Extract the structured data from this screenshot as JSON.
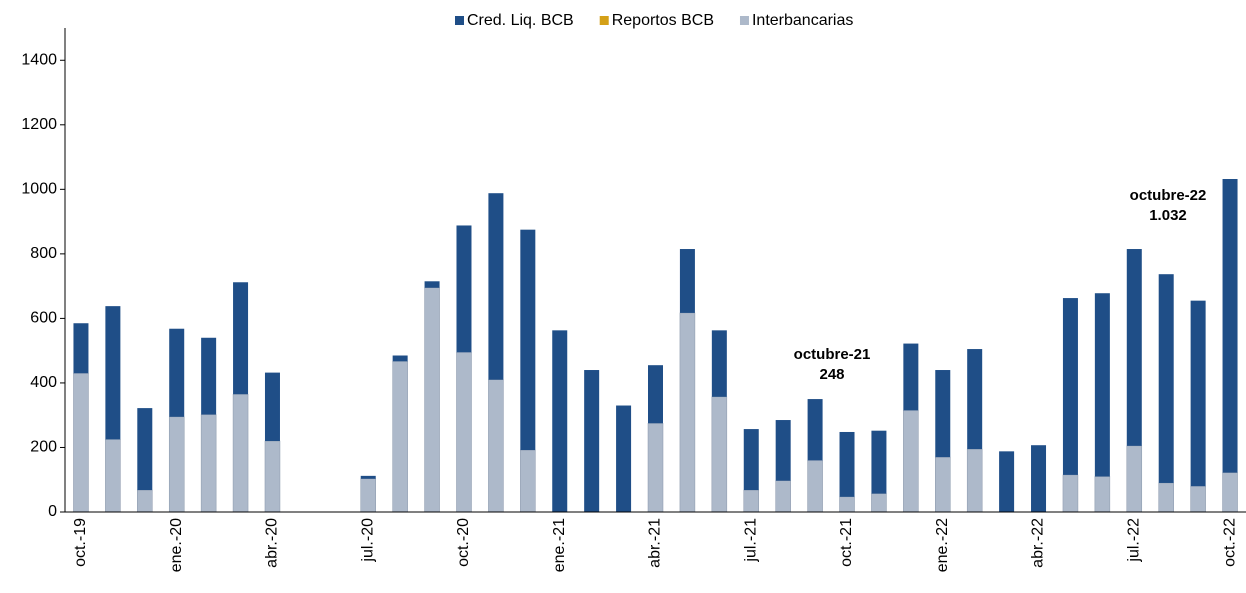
{
  "chart_data": {
    "type": "stacked_bar",
    "categories": [
      "oct.-19",
      null,
      null,
      "ene.-20",
      null,
      null,
      "abr.-20",
      null,
      null,
      "jul.-20",
      null,
      null,
      "oct.-20",
      null,
      null,
      "ene.-21",
      null,
      null,
      "abr.-21",
      null,
      null,
      "jul.-21",
      null,
      null,
      "oct.-21",
      null,
      null,
      "ene.-22",
      null,
      null,
      "abr.-22",
      null,
      null,
      "jul.-22",
      null,
      null,
      "oct.-22"
    ],
    "series": [
      {
        "name": "Interbancarias",
        "color": "#adb9ca",
        "values": [
          430,
          225,
          68,
          295,
          302,
          365,
          220,
          0,
          0,
          103,
          467,
          695,
          495,
          410,
          192,
          0,
          0,
          0,
          275,
          617,
          357,
          68,
          97,
          160,
          47,
          57,
          315,
          170,
          195,
          0,
          0,
          115,
          110,
          205,
          90,
          80,
          122
        ]
      },
      {
        "name": "Reportos BCB",
        "color": "#d4a017",
        "values": [
          0,
          0,
          0,
          0,
          0,
          0,
          0,
          0,
          0,
          0,
          0,
          0,
          0,
          0,
          0,
          0,
          0,
          0,
          0,
          0,
          0,
          0,
          0,
          0,
          0,
          0,
          0,
          0,
          0,
          0,
          0,
          0,
          0,
          0,
          0,
          0,
          0
        ]
      },
      {
        "name": "Cred. Liq. BCB",
        "color": "#1f4e87",
        "values": [
          155,
          413,
          254,
          273,
          238,
          347,
          212,
          0,
          0,
          9,
          18,
          20,
          393,
          578,
          683,
          563,
          440,
          330,
          180,
          198,
          206,
          189,
          188,
          190,
          201,
          195,
          207,
          270,
          310,
          188,
          207,
          548,
          568,
          610,
          647,
          575,
          910
        ]
      }
    ],
    "legend_order": [
      "Cred. Liq. BCB",
      "Reportos BCB",
      "Interbancarias"
    ],
    "ylim": [
      0,
      1500
    ],
    "yticks": [
      0,
      200,
      400,
      600,
      800,
      1000,
      1200,
      1400
    ],
    "annotations": [
      {
        "lines": [
          "octubre-21",
          "248"
        ]
      },
      {
        "lines": [
          "octubre-22",
          "1.032"
        ]
      }
    ]
  }
}
